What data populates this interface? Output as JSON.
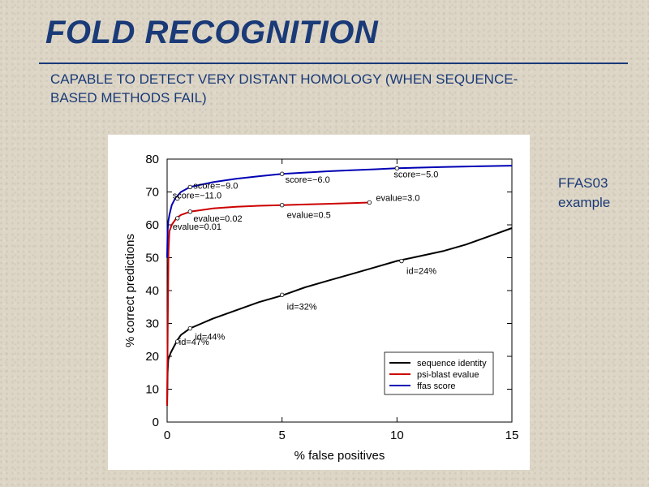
{
  "slide": {
    "title": "FOLD RECOGNITION",
    "subtitle": "CAPABLE TO DETECT VERY DISTANT HOMOLOGY (WHEN SEQUENCE-BASED METHODS FAIL)",
    "side_note_line1": "FFAS03",
    "side_note_line2": "example"
  },
  "colors": {
    "title": "#1a3a78",
    "sequence_identity": "#000000",
    "psi_blast": "#cc0000",
    "ffas": "#0000b4"
  },
  "chart_data": {
    "type": "line",
    "xlabel": "% false positives",
    "ylabel": "% correct predictions",
    "xlim": [
      0,
      15
    ],
    "ylim": [
      0,
      80
    ],
    "xticks": [
      0,
      5,
      10,
      15
    ],
    "yticks": [
      0,
      10,
      20,
      30,
      40,
      50,
      60,
      70,
      80
    ],
    "grid": false,
    "legend_position": "bottom-right",
    "series": [
      {
        "name": "sequence identity",
        "color": "#000000",
        "points": [
          [
            0.0,
            5
          ],
          [
            0.02,
            15
          ],
          [
            0.05,
            19
          ],
          [
            0.15,
            21
          ],
          [
            0.3,
            23
          ],
          [
            0.45,
            25
          ],
          [
            0.6,
            26.5
          ],
          [
            1.0,
            28.5
          ],
          [
            1.5,
            30
          ],
          [
            2,
            31.5
          ],
          [
            3,
            34
          ],
          [
            4,
            36.5
          ],
          [
            5,
            38.5
          ],
          [
            6,
            41
          ],
          [
            7,
            43
          ],
          [
            8,
            45
          ],
          [
            9,
            47
          ],
          [
            10,
            49
          ],
          [
            11,
            50.5
          ],
          [
            12,
            52
          ],
          [
            13,
            54
          ],
          [
            14,
            56.5
          ],
          [
            15,
            59
          ]
        ]
      },
      {
        "name": "psi-blast evalue",
        "color": "#cc0000",
        "points": [
          [
            0.0,
            5
          ],
          [
            0.03,
            30
          ],
          [
            0.06,
            52
          ],
          [
            0.1,
            58
          ],
          [
            0.2,
            60
          ],
          [
            0.4,
            62
          ],
          [
            0.6,
            63
          ],
          [
            1.0,
            64
          ],
          [
            2,
            65
          ],
          [
            3,
            65.5
          ],
          [
            4,
            65.8
          ],
          [
            5,
            66
          ],
          [
            6,
            66.2
          ],
          [
            7,
            66.4
          ],
          [
            8,
            66.6
          ],
          [
            8.8,
            66.8
          ]
        ]
      },
      {
        "name": "ffas score",
        "color": "#0000b4",
        "points": [
          [
            0.0,
            50
          ],
          [
            0.02,
            58
          ],
          [
            0.05,
            61
          ],
          [
            0.1,
            63
          ],
          [
            0.2,
            66
          ],
          [
            0.35,
            68
          ],
          [
            0.6,
            70
          ],
          [
            1.0,
            71.5
          ],
          [
            2,
            73
          ],
          [
            3,
            74
          ],
          [
            4,
            74.8
          ],
          [
            5,
            75.5
          ],
          [
            6,
            75.9
          ],
          [
            7,
            76.3
          ],
          [
            8,
            76.6
          ],
          [
            9,
            76.9
          ],
          [
            10,
            77.2
          ],
          [
            12,
            77.6
          ],
          [
            13.5,
            77.8
          ],
          [
            15,
            78
          ]
        ]
      }
    ],
    "annotations": [
      {
        "text": "id=47%",
        "x": 0.45,
        "y": 24.5,
        "series": "sequence identity"
      },
      {
        "text": "id=44%",
        "x": 1.0,
        "y": 28.5,
        "series": "sequence identity"
      },
      {
        "text": "id=32%",
        "x": 5.0,
        "y": 38.7,
        "series": "sequence identity"
      },
      {
        "text": "id=24%",
        "x": 10.2,
        "y": 49.0,
        "series": "sequence identity"
      },
      {
        "text": "evalue=0.01",
        "x": 0.45,
        "y": 62.0,
        "series": "psi-blast evalue"
      },
      {
        "text": "evalue=0.02",
        "x": 1.0,
        "y": 64.0,
        "series": "psi-blast evalue"
      },
      {
        "text": "evalue=0.5",
        "x": 5.0,
        "y": 66.0,
        "series": "psi-blast evalue"
      },
      {
        "text": "evalue=3.0",
        "x": 8.8,
        "y": 66.8,
        "series": "psi-blast evalue"
      },
      {
        "text": "score=−11.0",
        "x": 0.45,
        "y": 68.0,
        "series": "ffas score"
      },
      {
        "text": "score=−9.0",
        "x": 1.0,
        "y": 71.5,
        "series": "ffas score"
      },
      {
        "text": "score=−6.0",
        "x": 5.0,
        "y": 75.5,
        "series": "ffas score"
      },
      {
        "text": "score=−5.0",
        "x": 10.0,
        "y": 77.2,
        "series": "ffas score"
      }
    ]
  }
}
